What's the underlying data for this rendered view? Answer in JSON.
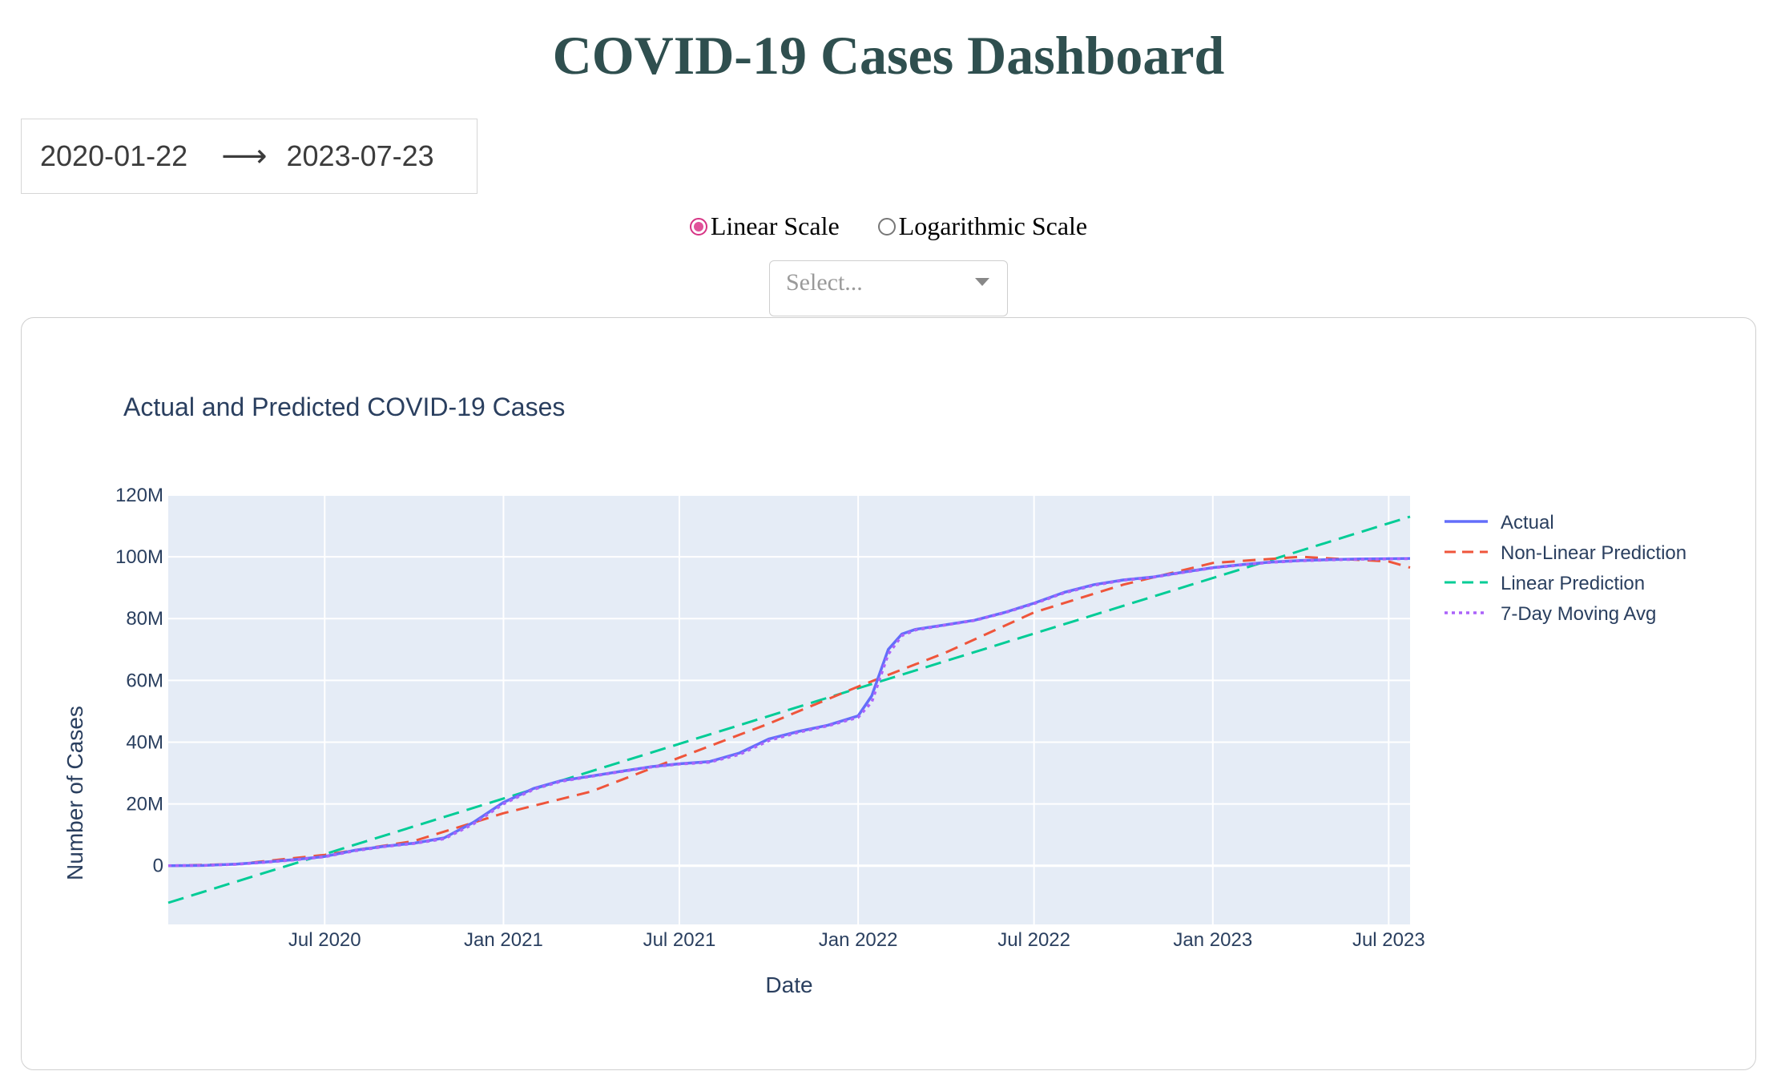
{
  "page": {
    "title": "COVID-19 Cases Dashboard"
  },
  "date_range": {
    "start": "2020-01-22",
    "arrow": "⟶",
    "end": "2023-07-23"
  },
  "scale_options": [
    {
      "label": "Linear Scale",
      "checked": true
    },
    {
      "label": "Logarithmic Scale",
      "checked": false
    }
  ],
  "dropdown": {
    "placeholder": "Select..."
  },
  "colors": {
    "title": "#2f4f4f",
    "plot_bg": "#e5ecf6",
    "axis_text": "#2a3f5f",
    "actual": "#636efa",
    "nonlinear": "#ef553b",
    "linear": "#00cc96",
    "moving_avg": "#ab63fa",
    "radio_accent": "#e0529a"
  },
  "chart_data": {
    "type": "line",
    "title": "Actual and Predicted COVID-19 Cases",
    "xlabel": "Date",
    "ylabel": "Number of Cases",
    "xlim": [
      "2020-01-22",
      "2023-07-23"
    ],
    "ylim": [
      -19000000,
      120000000
    ],
    "x_ticks": [
      {
        "date": "2020-07-01",
        "label": "Jul 2020"
      },
      {
        "date": "2021-01-01",
        "label": "Jan 2021"
      },
      {
        "date": "2021-07-01",
        "label": "Jul 2021"
      },
      {
        "date": "2022-01-01",
        "label": "Jan 2022"
      },
      {
        "date": "2022-07-01",
        "label": "Jul 2022"
      },
      {
        "date": "2023-01-01",
        "label": "Jan 2023"
      },
      {
        "date": "2023-07-01",
        "label": "Jul 2023"
      }
    ],
    "y_ticks": [
      {
        "value": 0,
        "label": "0"
      },
      {
        "value": 20000000,
        "label": "20M"
      },
      {
        "value": 40000000,
        "label": "40M"
      },
      {
        "value": 60000000,
        "label": "60M"
      },
      {
        "value": 80000000,
        "label": "80M"
      },
      {
        "value": 100000000,
        "label": "100M"
      },
      {
        "value": 120000000,
        "label": "120M"
      }
    ],
    "grid": true,
    "legend_position": "right",
    "series": [
      {
        "name": "Actual",
        "style": "solid",
        "points": [
          [
            "2020-01-22",
            0
          ],
          [
            "2020-03-01",
            100000
          ],
          [
            "2020-04-01",
            500000
          ],
          [
            "2020-05-01",
            1200000
          ],
          [
            "2020-06-01",
            2000000
          ],
          [
            "2020-07-01",
            3000000
          ],
          [
            "2020-08-01",
            5000000
          ],
          [
            "2020-09-01",
            6300000
          ],
          [
            "2020-10-01",
            7300000
          ],
          [
            "2020-11-01",
            9000000
          ],
          [
            "2020-12-01",
            14000000
          ],
          [
            "2021-01-01",
            20500000
          ],
          [
            "2021-02-01",
            25000000
          ],
          [
            "2021-03-01",
            27500000
          ],
          [
            "2021-04-01",
            29000000
          ],
          [
            "2021-05-01",
            30500000
          ],
          [
            "2021-06-01",
            32000000
          ],
          [
            "2021-07-01",
            33000000
          ],
          [
            "2021-08-01",
            33700000
          ],
          [
            "2021-09-01",
            36500000
          ],
          [
            "2021-10-01",
            41000000
          ],
          [
            "2021-11-01",
            43500000
          ],
          [
            "2021-12-01",
            45500000
          ],
          [
            "2022-01-01",
            48500000
          ],
          [
            "2022-01-15",
            55000000
          ],
          [
            "2022-02-01",
            70000000
          ],
          [
            "2022-02-15",
            75000000
          ],
          [
            "2022-03-01",
            76500000
          ],
          [
            "2022-04-01",
            78000000
          ],
          [
            "2022-05-01",
            79500000
          ],
          [
            "2022-06-01",
            82000000
          ],
          [
            "2022-07-01",
            85000000
          ],
          [
            "2022-08-01",
            88500000
          ],
          [
            "2022-09-01",
            91000000
          ],
          [
            "2022-10-01",
            92500000
          ],
          [
            "2022-11-01",
            93500000
          ],
          [
            "2022-12-01",
            95000000
          ],
          [
            "2023-01-01",
            96500000
          ],
          [
            "2023-02-01",
            97500000
          ],
          [
            "2023-03-01",
            98300000
          ],
          [
            "2023-04-01",
            98800000
          ],
          [
            "2023-05-01",
            99100000
          ],
          [
            "2023-06-01",
            99300000
          ],
          [
            "2023-07-23",
            99500000
          ]
        ]
      },
      {
        "name": "Non-Linear Prediction",
        "style": "dash",
        "points": [
          [
            "2020-01-22",
            0
          ],
          [
            "2020-04-01",
            500000
          ],
          [
            "2020-07-01",
            3500000
          ],
          [
            "2020-10-01",
            8000000
          ],
          [
            "2021-01-01",
            17000000
          ],
          [
            "2021-04-01",
            24000000
          ],
          [
            "2021-07-01",
            35000000
          ],
          [
            "2021-10-01",
            46000000
          ],
          [
            "2022-01-01",
            58000000
          ],
          [
            "2022-04-01",
            69000000
          ],
          [
            "2022-07-01",
            82000000
          ],
          [
            "2022-10-01",
            91000000
          ],
          [
            "2023-01-01",
            98000000
          ],
          [
            "2023-04-01",
            100000000
          ],
          [
            "2023-07-01",
            98500000
          ],
          [
            "2023-07-23",
            96500000
          ]
        ]
      },
      {
        "name": "Linear Prediction",
        "style": "longdash",
        "points": [
          [
            "2020-01-22",
            -12000000
          ],
          [
            "2023-07-23",
            113000000
          ]
        ]
      },
      {
        "name": "7-Day Moving Avg",
        "style": "dot",
        "points": [
          [
            "2020-01-22",
            0
          ],
          [
            "2020-03-01",
            100000
          ],
          [
            "2020-04-01",
            450000
          ],
          [
            "2020-05-01",
            1100000
          ],
          [
            "2020-06-01",
            1900000
          ],
          [
            "2020-07-01",
            2900000
          ],
          [
            "2020-08-01",
            4800000
          ],
          [
            "2020-09-01",
            6200000
          ],
          [
            "2020-10-01",
            7200000
          ],
          [
            "2020-11-01",
            8700000
          ],
          [
            "2020-12-01",
            13500000
          ],
          [
            "2021-01-01",
            20000000
          ],
          [
            "2021-02-01",
            24700000
          ],
          [
            "2021-03-01",
            27300000
          ],
          [
            "2021-04-01",
            28900000
          ],
          [
            "2021-05-01",
            30400000
          ],
          [
            "2021-06-01",
            31900000
          ],
          [
            "2021-07-01",
            32900000
          ],
          [
            "2021-08-01",
            33500000
          ],
          [
            "2021-09-01",
            36000000
          ],
          [
            "2021-10-01",
            40500000
          ],
          [
            "2021-11-01",
            43200000
          ],
          [
            "2021-12-01",
            45300000
          ],
          [
            "2022-01-01",
            48000000
          ],
          [
            "2022-01-15",
            53000000
          ],
          [
            "2022-02-01",
            68500000
          ],
          [
            "2022-02-15",
            74500000
          ],
          [
            "2022-03-01",
            76300000
          ],
          [
            "2022-04-01",
            77900000
          ],
          [
            "2022-05-01",
            79400000
          ],
          [
            "2022-06-01",
            81900000
          ],
          [
            "2022-07-01",
            84800000
          ],
          [
            "2022-08-01",
            88300000
          ],
          [
            "2022-09-01",
            90800000
          ],
          [
            "2022-10-01",
            92400000
          ],
          [
            "2022-11-01",
            93400000
          ],
          [
            "2022-12-01",
            94900000
          ],
          [
            "2023-01-01",
            96400000
          ],
          [
            "2023-02-01",
            97400000
          ],
          [
            "2023-03-01",
            98200000
          ],
          [
            "2023-04-01",
            98700000
          ],
          [
            "2023-05-01",
            99000000
          ],
          [
            "2023-06-01",
            99200000
          ],
          [
            "2023-07-23",
            99400000
          ]
        ]
      }
    ]
  }
}
